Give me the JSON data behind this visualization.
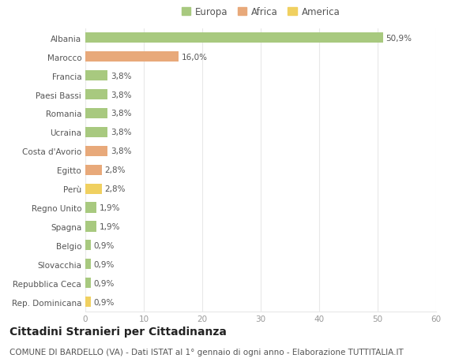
{
  "categories": [
    "Albania",
    "Marocco",
    "Francia",
    "Paesi Bassi",
    "Romania",
    "Ucraina",
    "Costa d'Avorio",
    "Egitto",
    "Perù",
    "Regno Unito",
    "Spagna",
    "Belgio",
    "Slovacchia",
    "Repubblica Ceca",
    "Rep. Dominicana"
  ],
  "values": [
    50.9,
    16.0,
    3.8,
    3.8,
    3.8,
    3.8,
    3.8,
    2.8,
    2.8,
    1.9,
    1.9,
    0.9,
    0.9,
    0.9,
    0.9
  ],
  "labels": [
    "50,9%",
    "16,0%",
    "3,8%",
    "3,8%",
    "3,8%",
    "3,8%",
    "3,8%",
    "2,8%",
    "2,8%",
    "1,9%",
    "1,9%",
    "0,9%",
    "0,9%",
    "0,9%",
    "0,9%"
  ],
  "colors": [
    "#a8c97f",
    "#e8a97a",
    "#a8c97f",
    "#a8c97f",
    "#a8c97f",
    "#a8c97f",
    "#e8a97a",
    "#e8a97a",
    "#f0d060",
    "#a8c97f",
    "#a8c97f",
    "#a8c97f",
    "#a8c97f",
    "#a8c97f",
    "#f0d060"
  ],
  "legend_labels": [
    "Europa",
    "Africa",
    "America"
  ],
  "legend_colors": [
    "#a8c97f",
    "#e8a97a",
    "#f0d060"
  ],
  "title": "Cittadini Stranieri per Cittadinanza",
  "subtitle": "COMUNE DI BARDELLO (VA) - Dati ISTAT al 1° gennaio di ogni anno - Elaborazione TUTTITALIA.IT",
  "xlim": [
    0,
    60
  ],
  "xticks": [
    0,
    10,
    20,
    30,
    40,
    50,
    60
  ],
  "background_color": "#ffffff",
  "grid_color": "#e8e8e8",
  "bar_height": 0.55,
  "title_fontsize": 10,
  "subtitle_fontsize": 7.5,
  "label_fontsize": 7.5,
  "tick_fontsize": 7.5,
  "legend_fontsize": 8.5
}
